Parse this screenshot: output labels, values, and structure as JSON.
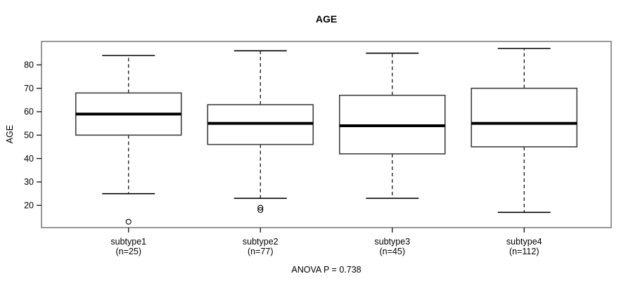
{
  "chart_data": {
    "type": "boxplot",
    "title": "AGE",
    "ylabel": "AGE",
    "footer": "ANOVA P = 0.738",
    "yticks": [
      20,
      30,
      40,
      50,
      60,
      70,
      80
    ],
    "ylim": [
      10.5,
      90
    ],
    "grid": false,
    "frame_color": "#7f7f7f",
    "box_stroke_color": "#3f3f3f",
    "line_color": "#000000",
    "box_fill_color": "#ffffff",
    "groups": [
      {
        "label": "subtype1",
        "n_label": "(n=25)",
        "whisker_low": 25,
        "q1": 50,
        "median": 59,
        "q3": 68,
        "whisker_high": 84,
        "outliers": [
          13
        ]
      },
      {
        "label": "subtype2",
        "n_label": "(n=77)",
        "whisker_low": 23,
        "q1": 46,
        "median": 55,
        "q3": 63,
        "whisker_high": 86,
        "outliers": [
          19,
          18
        ]
      },
      {
        "label": "subtype3",
        "n_label": "(n=45)",
        "whisker_low": 23,
        "q1": 42,
        "median": 54,
        "q3": 67,
        "whisker_high": 85,
        "outliers": []
      },
      {
        "label": "subtype4",
        "n_label": "(n=112)",
        "whisker_low": 17,
        "q1": 45,
        "median": 55,
        "q3": 70,
        "whisker_high": 87,
        "outliers": []
      }
    ]
  }
}
